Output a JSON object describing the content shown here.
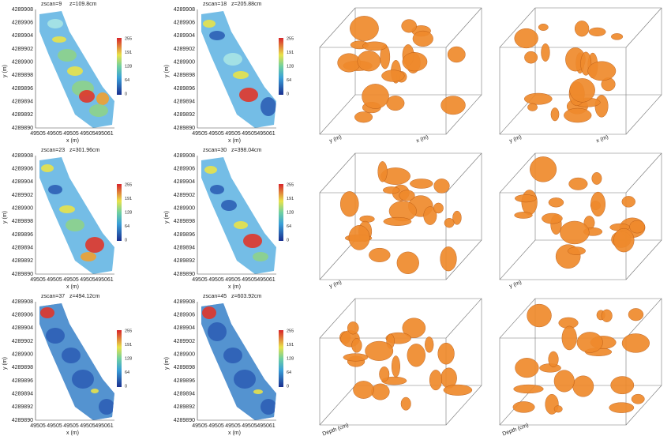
{
  "axes": {
    "y_label": "y (m)",
    "x_label": "x (m)",
    "y_ticks": [
      "4289908",
      "4289906",
      "4289904",
      "4289902",
      "4289900",
      "4289898",
      "4289896",
      "4289894",
      "4289892",
      "4289890"
    ],
    "x_ticks": [
      "49505",
      "49505",
      "49505",
      "49505",
      "495061"
    ],
    "colorbar_ticks": [
      "255",
      "191",
      "128",
      "64",
      "0"
    ]
  },
  "slices": [
    {
      "scan": "zscan=9",
      "depth": "z=109.8cm"
    },
    {
      "scan": "zscan=18",
      "depth": "z=205.88cm"
    },
    {
      "scan": "zscan=23",
      "depth": "z=301.96cm"
    },
    {
      "scan": "zscan=30",
      "depth": "z=398.04cm"
    },
    {
      "scan": "zscan=37",
      "depth": "z=494.12cm"
    },
    {
      "scan": "zscan=45",
      "depth": "z=603.92cm"
    }
  ],
  "renders": [
    {
      "labels": [
        "y (m)",
        "x (m)"
      ]
    },
    {
      "labels": [
        "y (m)",
        "x (m)"
      ]
    },
    {
      "labels": [
        "y (m)"
      ]
    },
    {
      "labels": [
        "y (m)"
      ]
    },
    {
      "labels": [
        "Depth (cm)"
      ]
    },
    {
      "labels": [
        "Depth (cm)"
      ]
    }
  ]
}
